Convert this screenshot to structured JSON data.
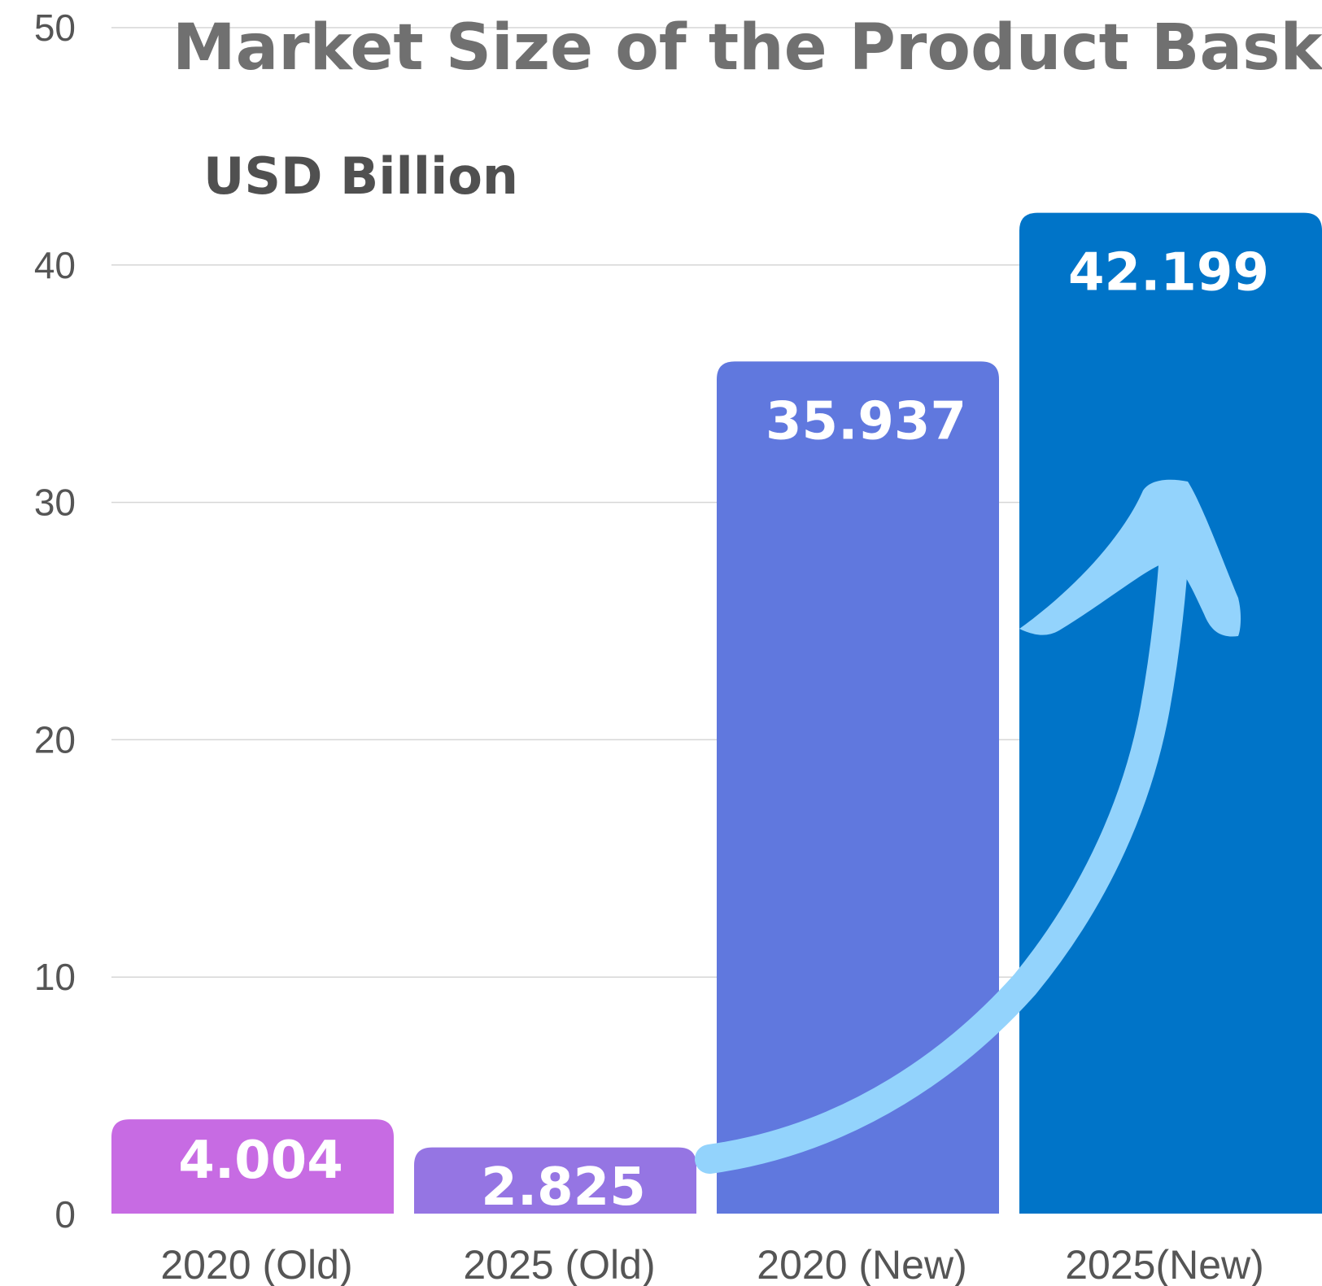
{
  "chart_data": {
    "type": "bar",
    "title": "Market Size of the Product Bask",
    "unit_label": "USD Billion",
    "categories": [
      "2020 (Old)",
      "2025 (Old)",
      "2020 (New)",
      "2025(New)"
    ],
    "values": [
      4.004,
      2.825,
      35.937,
      42.199
    ],
    "value_labels": [
      "4.004",
      "2.825",
      "35.937",
      "42.199"
    ],
    "colors": [
      "#C76BE3",
      "#9575E3",
      "#6078DE",
      "#0074C8"
    ],
    "ylim": [
      0,
      50
    ],
    "yticks": [
      "0",
      "10",
      "20",
      "30",
      "40",
      "50"
    ],
    "grid": true,
    "annotation": {
      "type": "arrow",
      "color": "#93D3FC",
      "direction": "up-right"
    }
  }
}
